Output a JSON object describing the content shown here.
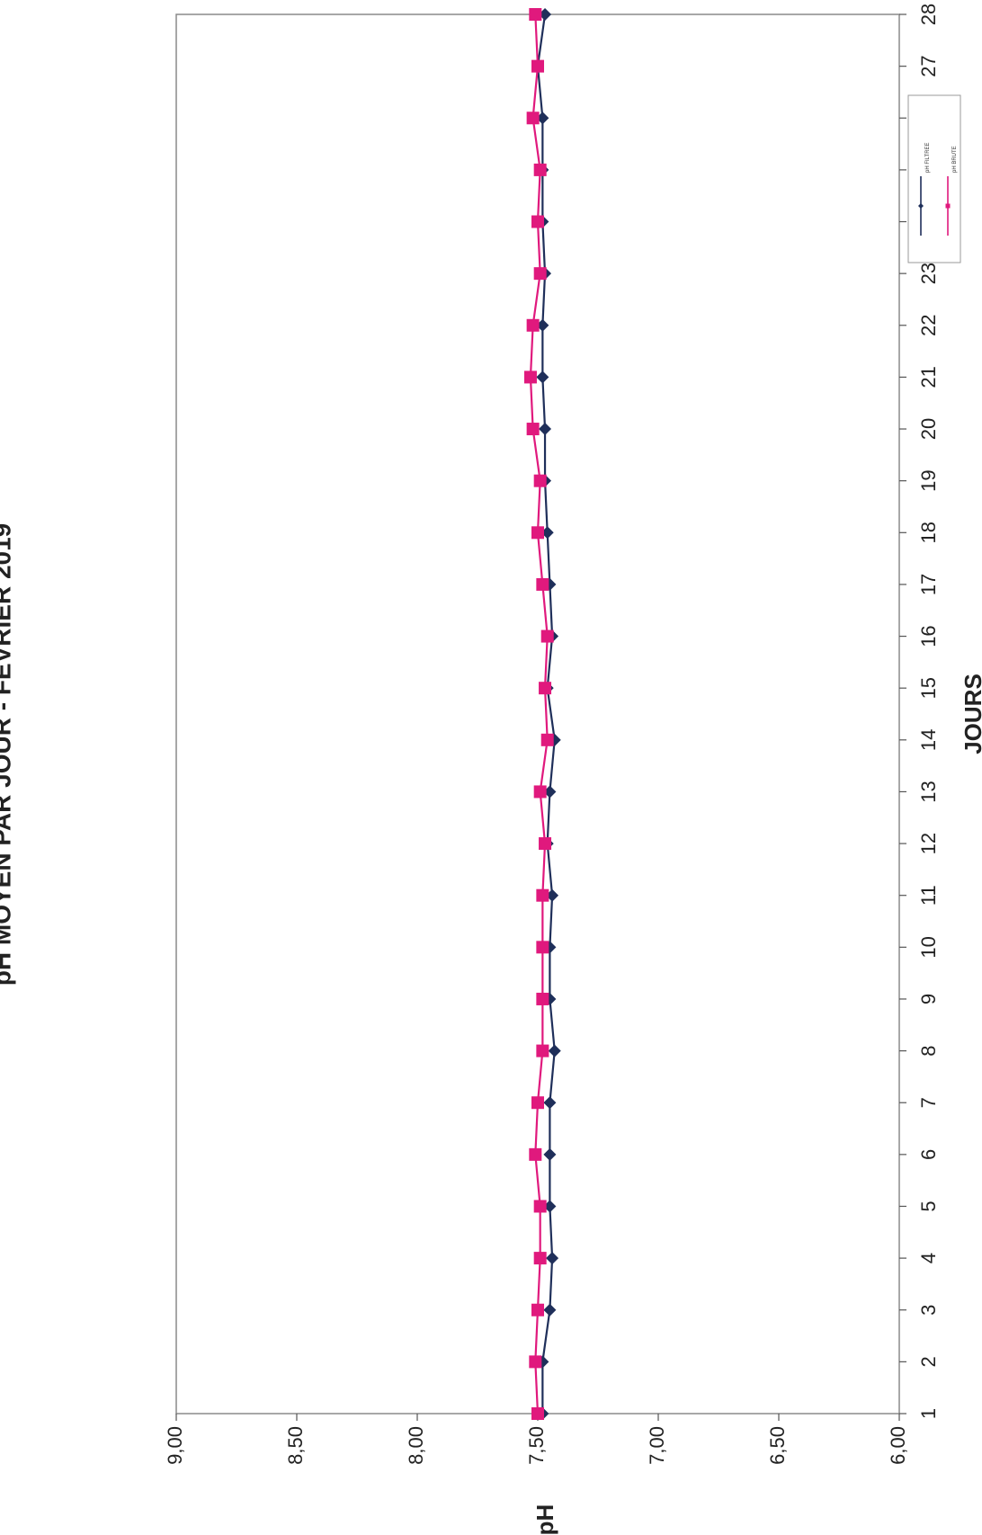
{
  "chart_data": {
    "type": "line",
    "orientation": "rotated-90-clockwise",
    "title": "pH MOYEN PAR JOUR - FEVRIER 2019",
    "xlabel": "JOURS",
    "ylabel": "pH",
    "ylim": [
      6.0,
      9.0
    ],
    "yticks": [
      "9,00",
      "8,50",
      "8,00",
      "7,50",
      "7,00",
      "6,50",
      "6,00"
    ],
    "x": [
      1,
      2,
      3,
      4,
      5,
      6,
      7,
      8,
      9,
      10,
      11,
      12,
      13,
      14,
      15,
      16,
      17,
      18,
      19,
      20,
      21,
      22,
      23,
      24,
      25,
      26,
      27,
      28
    ],
    "series": [
      {
        "name": "pH FILTREE",
        "color": "#1f2f5a",
        "marker": "diamond",
        "values": [
          7.48,
          7.48,
          7.45,
          7.44,
          7.45,
          7.45,
          7.45,
          7.43,
          7.45,
          7.45,
          7.44,
          7.46,
          7.45,
          7.43,
          7.46,
          7.44,
          7.45,
          7.46,
          7.47,
          7.47,
          7.48,
          7.48,
          7.47,
          7.48,
          7.48,
          7.48,
          7.5,
          7.47
        ]
      },
      {
        "name": "pH BRUTE",
        "color": "#e0197d",
        "marker": "square",
        "values": [
          7.5,
          7.51,
          7.5,
          7.49,
          7.49,
          7.51,
          7.5,
          7.48,
          7.48,
          7.48,
          7.48,
          7.47,
          7.49,
          7.46,
          7.47,
          7.46,
          7.48,
          7.5,
          7.49,
          7.52,
          7.53,
          7.52,
          7.49,
          7.5,
          7.49,
          7.52,
          7.5,
          7.51
        ]
      }
    ],
    "grid": false,
    "legend": "top-right"
  }
}
